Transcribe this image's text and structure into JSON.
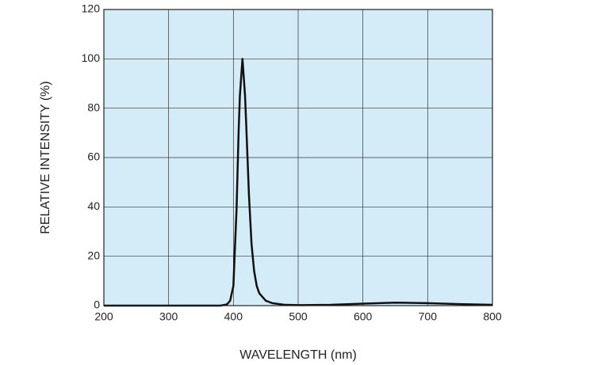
{
  "chart_data": {
    "type": "line",
    "x_label": "WAVELENGTH (nm)",
    "y_label": "RELATIVE INTENSITY (%)",
    "x": [
      200,
      300,
      380,
      390,
      395,
      400,
      405,
      408,
      410,
      414,
      418,
      420,
      424,
      428,
      432,
      436,
      440,
      450,
      460,
      480,
      500,
      550,
      600,
      650,
      700,
      750,
      800
    ],
    "values": [
      0,
      0,
      0,
      0.5,
      2,
      8,
      40,
      70,
      85,
      100,
      85,
      72,
      45,
      25,
      14,
      8,
      5,
      2,
      1,
      0.3,
      0.2,
      0.3,
      0.8,
      1.2,
      1.0,
      0.6,
      0.3
    ],
    "color": "#111111",
    "background": "#d4ecf8",
    "xlim": [
      200,
      800
    ],
    "xticks": [
      200,
      300,
      400,
      500,
      600,
      700,
      800
    ],
    "ylim": [
      0,
      120
    ],
    "yticks": [
      0,
      20,
      40,
      60,
      80,
      100,
      120
    ],
    "grid": true
  }
}
